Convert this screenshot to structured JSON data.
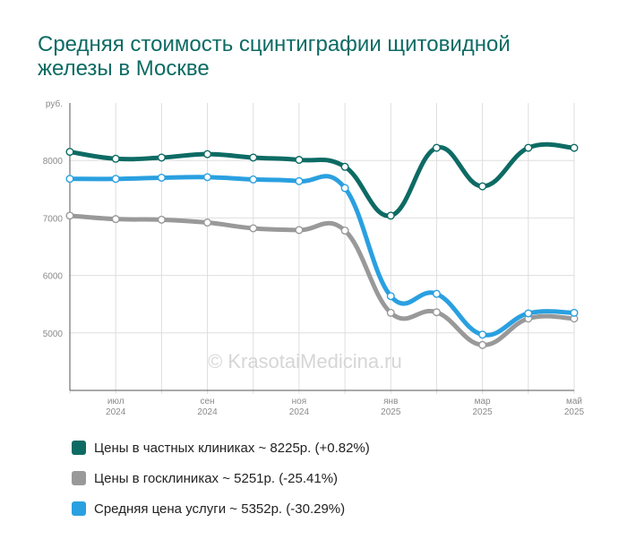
{
  "title": "Средняя стоимость сцинтиграфии щитовидной железы в Москве",
  "watermark": "© KrasotaiMedicina.ru",
  "chart_data": {
    "type": "line",
    "title": "Средняя стоимость сцинтиграфии щитовидной железы в Москве",
    "ylabel": "руб.",
    "ylim": [
      4000,
      9000
    ],
    "y_ticks": [
      5000,
      6000,
      7000,
      8000
    ],
    "x_tick_labels": [
      {
        "month": "июл",
        "year": "2024",
        "index": 1
      },
      {
        "month": "сен",
        "year": "2024",
        "index": 3
      },
      {
        "month": "ноя",
        "year": "2024",
        "index": 5
      },
      {
        "month": "янв",
        "year": "2025",
        "index": 7
      },
      {
        "month": "мар",
        "year": "2025",
        "index": 9
      },
      {
        "month": "май",
        "year": "2025",
        "index": 11
      }
    ],
    "x": [
      "2024-06",
      "2024-07",
      "2024-08",
      "2024-09",
      "2024-10",
      "2024-11",
      "2024-12",
      "2025-01",
      "2025-02",
      "2025-03",
      "2025-04",
      "2025-05"
    ],
    "grid": true,
    "legend_position": "bottom",
    "series": [
      {
        "name": "Цены в частных клиниках ~ 8225р. (+0.82%)",
        "color": "#0d6b64",
        "values": [
          8150,
          8030,
          8050,
          8110,
          8050,
          8010,
          7890,
          7040,
          8220,
          7550,
          8220,
          8220
        ]
      },
      {
        "name": "Цены в госклиниках ~ 5251р. (-25.41%)",
        "color": "#999999",
        "values": [
          7040,
          6980,
          6970,
          6920,
          6820,
          6790,
          6780,
          5350,
          5360,
          4790,
          5250,
          5250
        ]
      },
      {
        "name": "Средняя цена услуги ~ 5352р. (-30.29%)",
        "color": "#2aa0e0",
        "values": [
          7680,
          7680,
          7700,
          7710,
          7670,
          7640,
          7520,
          5640,
          5680,
          4970,
          5340,
          5350
        ]
      }
    ]
  }
}
